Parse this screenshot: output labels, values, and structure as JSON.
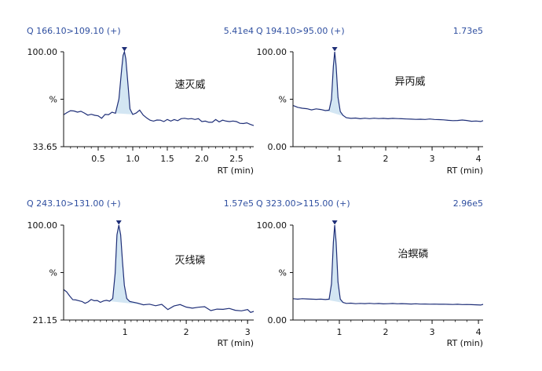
{
  "colors": {
    "header": "#2f4fa0",
    "trace": "#1f2f78",
    "fill": "#d3e6f3",
    "axis": "#111111",
    "text": "#111111"
  },
  "chart_data": [
    {
      "type": "line",
      "header_left": "Q 166.10>109.10 (+)",
      "header_right": "5.41e4",
      "compound": "速灭威",
      "xlabel": "RT (min)",
      "ylabel": "%",
      "x_ticks": [
        "0.5",
        "1.0",
        "1.5",
        "2.0",
        "2.5"
      ],
      "x_tick_values": [
        0.5,
        1.0,
        1.5,
        2.0,
        2.5
      ],
      "xlim": [
        0.0,
        2.75
      ],
      "y_ticks": [
        "100.00",
        "%",
        "33.65"
      ],
      "ylim": [
        33.65,
        100.0
      ],
      "peak": {
        "x": 0.88,
        "y": 100.0
      },
      "x": [
        0.0,
        0.05,
        0.1,
        0.15,
        0.2,
        0.25,
        0.3,
        0.35,
        0.4,
        0.45,
        0.5,
        0.55,
        0.6,
        0.65,
        0.7,
        0.75,
        0.8,
        0.84,
        0.86,
        0.88,
        0.9,
        0.93,
        0.96,
        1.0,
        1.05,
        1.1,
        1.15,
        1.2,
        1.25,
        1.3,
        1.35,
        1.4,
        1.45,
        1.5,
        1.55,
        1.6,
        1.65,
        1.7,
        1.75,
        1.8,
        1.85,
        1.9,
        1.95,
        2.0,
        2.05,
        2.1,
        2.15,
        2.2,
        2.25,
        2.3,
        2.35,
        2.4,
        2.45,
        2.5,
        2.55,
        2.6,
        2.65,
        2.7,
        2.75
      ],
      "y": [
        56.0,
        57.5,
        58.8,
        58.6,
        57.8,
        58.4,
        57.2,
        55.7,
        56.3,
        55.6,
        55.2,
        53.5,
        56.2,
        56.0,
        57.8,
        57.0,
        67.0,
        88.0,
        97.5,
        100.0,
        95.0,
        78.0,
        60.0,
        56.2,
        57.2,
        59.2,
        55.8,
        53.8,
        52.2,
        51.5,
        52.3,
        52.2,
        51.2,
        52.7,
        51.5,
        52.6,
        51.8,
        53.2,
        53.5,
        53.0,
        53.3,
        52.7,
        53.2,
        51.2,
        51.5,
        50.7,
        50.7,
        52.6,
        51.0,
        52.2,
        51.5,
        51.2,
        51.6,
        51.2,
        50.0,
        49.8,
        50.3,
        49.2,
        48.4
      ]
    },
    {
      "type": "line",
      "header_left": "Q 194.10>95.00 (+)",
      "header_right": "1.73e5",
      "compound": "异丙威",
      "xlabel": "RT (min)",
      "ylabel": "%",
      "x_ticks": [
        "1",
        "2",
        "3",
        "4"
      ],
      "x_tick_values": [
        1,
        2,
        3,
        4
      ],
      "xlim": [
        0.0,
        4.1
      ],
      "y_ticks": [
        "100.00",
        "%",
        "0.00"
      ],
      "ylim": [
        0.0,
        100.0
      ],
      "peak": {
        "x": 0.9,
        "y": 100.0
      },
      "x": [
        0.0,
        0.1,
        0.2,
        0.3,
        0.4,
        0.5,
        0.6,
        0.7,
        0.78,
        0.83,
        0.87,
        0.9,
        0.93,
        0.97,
        1.02,
        1.08,
        1.15,
        1.25,
        1.35,
        1.45,
        1.55,
        1.65,
        1.75,
        1.85,
        1.95,
        2.05,
        2.15,
        2.25,
        2.35,
        2.45,
        2.55,
        2.65,
        2.75,
        2.85,
        2.95,
        3.05,
        3.15,
        3.25,
        3.35,
        3.45,
        3.55,
        3.65,
        3.75,
        3.85,
        3.95,
        4.05,
        4.1
      ],
      "y": [
        43.5,
        41.5,
        40.5,
        40.0,
        38.8,
        39.8,
        39.2,
        38.0,
        38.5,
        50.0,
        85.0,
        100.0,
        85.0,
        52.0,
        37.0,
        33.0,
        30.5,
        29.8,
        30.2,
        29.4,
        30.0,
        29.5,
        30.0,
        29.6,
        29.8,
        29.4,
        29.8,
        29.6,
        29.4,
        29.2,
        29.0,
        28.8,
        28.9,
        28.7,
        29.2,
        28.7,
        28.5,
        28.3,
        27.8,
        27.4,
        27.6,
        28.1,
        27.6,
        26.8,
        27.0,
        26.5,
        27.4
      ]
    },
    {
      "type": "line",
      "header_left": "Q 243.10>131.00 (+)",
      "header_right": "1.57e5",
      "compound": "灭线磷",
      "xlabel": "RT (min)",
      "ylabel": "%",
      "x_ticks": [
        "1",
        "2",
        "3"
      ],
      "x_tick_values": [
        1,
        2,
        3
      ],
      "xlim": [
        0.0,
        3.1
      ],
      "y_ticks": [
        "100.00",
        "%",
        "21.15"
      ],
      "ylim": [
        21.15,
        100.0
      ],
      "peak": {
        "x": 0.9,
        "y": 100.0
      },
      "x": [
        0.0,
        0.05,
        0.1,
        0.15,
        0.2,
        0.25,
        0.3,
        0.35,
        0.4,
        0.45,
        0.5,
        0.55,
        0.6,
        0.65,
        0.7,
        0.75,
        0.8,
        0.84,
        0.87,
        0.9,
        0.93,
        0.96,
        0.99,
        1.03,
        1.08,
        1.13,
        1.2,
        1.3,
        1.4,
        1.5,
        1.6,
        1.7,
        1.8,
        1.9,
        2.0,
        2.1,
        2.2,
        2.3,
        2.4,
        2.5,
        2.6,
        2.7,
        2.8,
        2.9,
        3.0,
        3.05,
        3.1
      ],
      "y": [
        46.5,
        44.5,
        41.0,
        38.0,
        37.8,
        37.2,
        36.5,
        35.0,
        36.2,
        38.2,
        37.2,
        37.4,
        35.8,
        37.0,
        37.5,
        36.8,
        39.0,
        60.0,
        92.0,
        100.0,
        92.0,
        70.0,
        50.0,
        39.0,
        36.5,
        36.0,
        35.3,
        33.8,
        34.3,
        33.0,
        34.2,
        29.8,
        32.8,
        34.0,
        31.9,
        31.0,
        31.8,
        32.2,
        29.0,
        30.2,
        30.0,
        30.8,
        29.2,
        28.8,
        29.8,
        27.5,
        28.3
      ]
    },
    {
      "type": "line",
      "header_left": "Q 323.00>115.00 (+)",
      "header_right": "2.96e5",
      "compound": "治螟磷",
      "xlabel": "RT (min)",
      "ylabel": "%",
      "x_ticks": [
        "1",
        "2",
        "3",
        "4"
      ],
      "x_tick_values": [
        1,
        2,
        3,
        4
      ],
      "xlim": [
        0.0,
        4.1
      ],
      "y_ticks": [
        "100.00",
        "%",
        "0.00"
      ],
      "ylim": [
        0.0,
        100.0
      ],
      "peak": {
        "x": 0.9,
        "y": 100.0
      },
      "x": [
        0.0,
        0.1,
        0.2,
        0.3,
        0.4,
        0.5,
        0.6,
        0.7,
        0.78,
        0.83,
        0.87,
        0.9,
        0.93,
        0.97,
        1.02,
        1.08,
        1.15,
        1.25,
        1.35,
        1.45,
        1.55,
        1.65,
        1.75,
        1.85,
        1.95,
        2.05,
        2.15,
        2.25,
        2.35,
        2.45,
        2.55,
        2.65,
        2.75,
        2.85,
        2.95,
        3.05,
        3.15,
        3.25,
        3.35,
        3.45,
        3.55,
        3.65,
        3.75,
        3.85,
        3.95,
        4.05,
        4.1
      ],
      "y": [
        22.5,
        22.0,
        22.5,
        22.2,
        22.0,
        21.8,
        22.0,
        21.6,
        22.0,
        38.0,
        82.0,
        100.0,
        82.0,
        40.0,
        22.0,
        18.5,
        17.5,
        17.8,
        17.2,
        17.5,
        17.3,
        17.6,
        17.2,
        17.4,
        17.0,
        17.2,
        17.4,
        17.1,
        17.3,
        17.0,
        16.9,
        17.1,
        16.8,
        16.9,
        16.7,
        16.8,
        16.6,
        16.7,
        16.5,
        16.4,
        16.6,
        16.3,
        16.4,
        16.2,
        16.0,
        15.8,
        16.5
      ]
    }
  ]
}
